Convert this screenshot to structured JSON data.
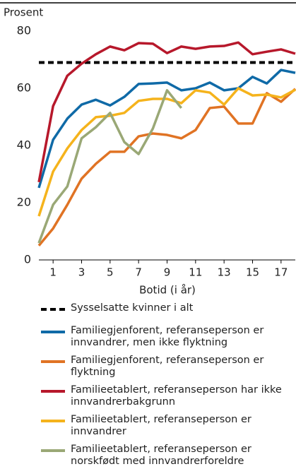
{
  "chart_data": {
    "type": "line",
    "ylabel": "Prosent",
    "xlabel": "Botid (i år)",
    "x": [
      0,
      1,
      2,
      3,
      4,
      5,
      6,
      7,
      8,
      9,
      10,
      11,
      12,
      13,
      14,
      15,
      16,
      17,
      18
    ],
    "xlim": [
      0,
      18
    ],
    "xticks": [
      1,
      3,
      5,
      7,
      9,
      11,
      13,
      15,
      17
    ],
    "ylim": [
      0,
      80
    ],
    "yticks": [
      0,
      20,
      40,
      60,
      80
    ],
    "series": [
      {
        "name": "Sysselsatte kvinner i alt",
        "color": "#000000",
        "dashed": true,
        "values": [
          69,
          69,
          69,
          69,
          69,
          69,
          69,
          69,
          69,
          69,
          69,
          69,
          69,
          69,
          69,
          69,
          69,
          69,
          69
        ]
      },
      {
        "name": "Familiegjenforent, referanseperson er innvandrer, men ikke flyktning",
        "color": "#0f6aa7",
        "values": [
          25.2,
          42,
          49.4,
          54.3,
          56,
          54,
          57,
          61.5,
          61.7,
          62,
          59.3,
          60,
          62,
          59.3,
          60,
          64,
          61.7,
          66.4,
          65.4
        ]
      },
      {
        "name": "Familiegjenforent, referanseperson er flyktning",
        "color": "#e07324",
        "values": [
          5,
          11,
          19.3,
          28.4,
          33.6,
          37.8,
          37.8,
          43.2,
          44.2,
          43.7,
          42.5,
          45.4,
          53.1,
          53.6,
          47.7,
          47.7,
          58.3,
          55.3,
          59.8
        ]
      },
      {
        "name": "Familieetablert, referanseperson har ikke innvandrerbakgrunn",
        "color": "#b7182b",
        "values": [
          27.2,
          53.8,
          64.4,
          68.6,
          71.9,
          74.6,
          73.3,
          75.8,
          75.6,
          72.3,
          74.6,
          73.8,
          74.6,
          74.8,
          76,
          71.9,
          72.8,
          73.6,
          72.1
        ]
      },
      {
        "name": "Familieetablert, referanseperson er innvandrer",
        "color": "#f5b31c",
        "values": [
          15.3,
          30.9,
          39,
          45.4,
          49.9,
          50.4,
          51.4,
          55.6,
          56.3,
          56.3,
          54.8,
          59.3,
          58.5,
          54.3,
          60,
          57.5,
          57.8,
          56.8,
          59.5
        ]
      },
      {
        "name": "Familieetablert, referanseperson er norskfødt med innvandrerforeldre",
        "color": "#9aa876",
        "values": [
          5.9,
          19.3,
          25.7,
          42.5,
          46.4,
          51.4,
          41.2,
          37,
          45.9,
          59.3,
          53.1,
          null,
          null,
          null,
          null,
          null,
          null,
          null,
          null
        ]
      }
    ]
  }
}
